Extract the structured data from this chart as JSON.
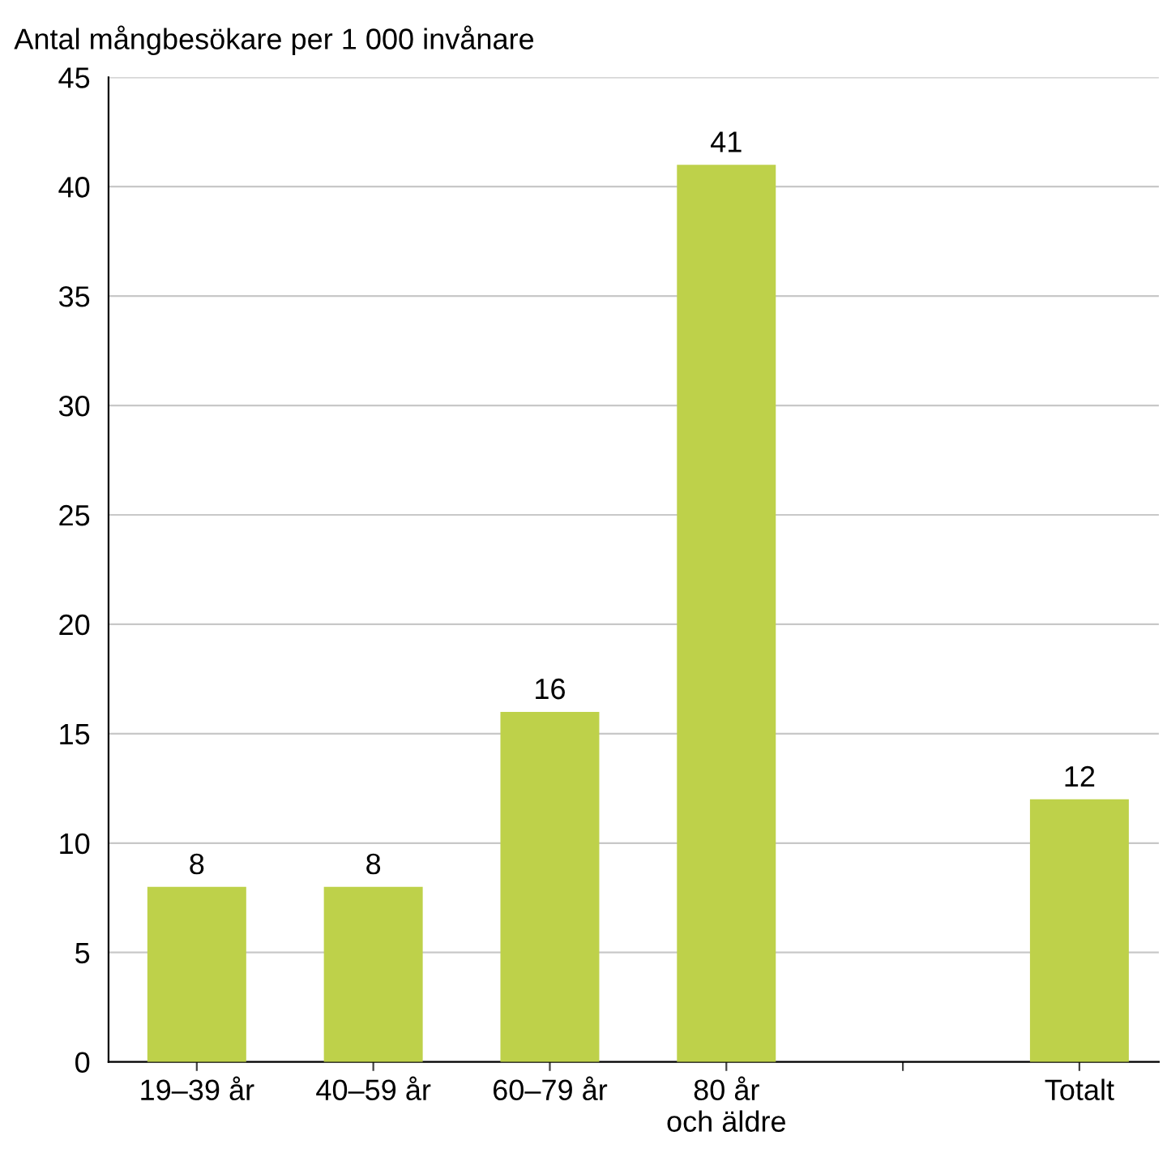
{
  "chart_data": {
    "type": "bar",
    "ylabel": "Antal mångbesökare per 1 000 invånare",
    "categories": [
      "19–39 år",
      "40–59 år",
      "60–79 år",
      "80 år\noch äldre",
      null,
      "Totalt"
    ],
    "values": [
      8,
      8,
      16,
      41,
      null,
      12
    ],
    "color": "#bed14a",
    "ylim": [
      0,
      45
    ],
    "yticks": [
      0,
      5,
      10,
      15,
      20,
      25,
      30,
      35,
      40,
      45
    ],
    "grid": "y",
    "data_labels": true,
    "legend": false
  }
}
